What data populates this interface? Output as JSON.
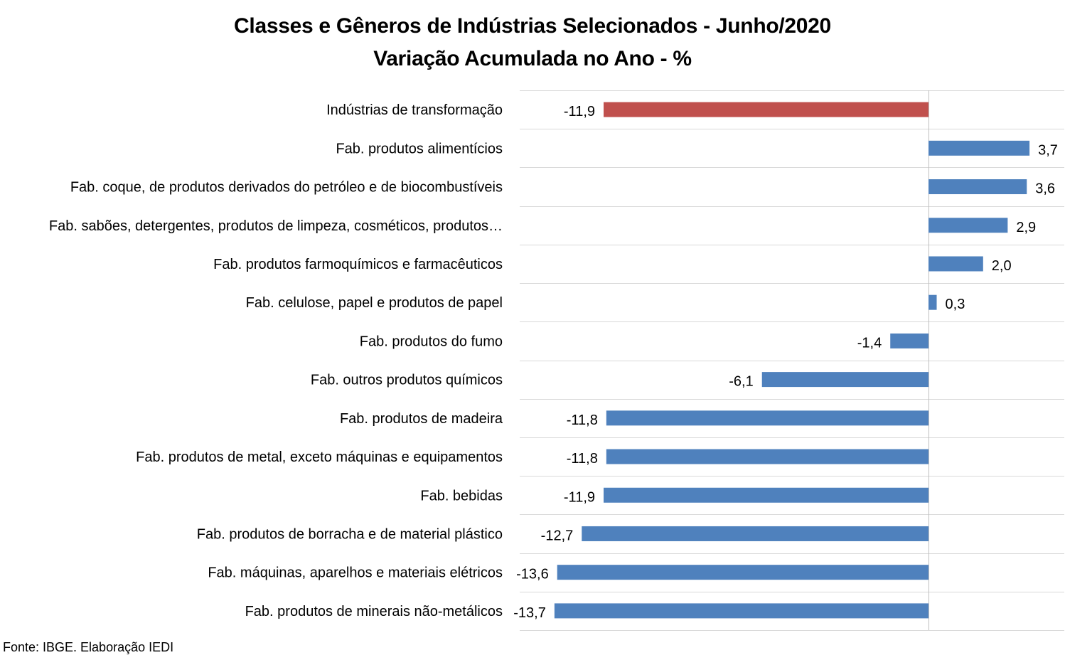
{
  "title_line1": "Classes e Gêneros de Indústrias Selecionados - Junho/2020",
  "title_line2": "Variação Acumulada no Ano - %",
  "source": "Fonte: IBGE. Elaboração IEDI",
  "colors": {
    "highlight": "#C0504D",
    "bar": "#4F81BD",
    "grid": "#D9D9D9",
    "axis": "#BFBFBF"
  },
  "chart_data": {
    "type": "bar",
    "orientation": "horizontal",
    "title": "Classes e Gêneros de Indústrias Selecionados - Junho/2020 Variação Acumulada no Ano - %",
    "xlim": [
      -15,
      5
    ],
    "grid": true,
    "categories": [
      "Indústrias de transformação",
      "Fab. produtos alimentícios",
      "Fab. coque, de produtos derivados do petróleo e de biocombustíveis",
      "Fab. sabões, detergentes, produtos de limpeza, cosméticos, produtos…",
      "Fab. produtos farmoquímicos e farmacêuticos",
      "Fab. celulose, papel e produtos de papel",
      "Fab. produtos do fumo",
      "Fab. outros produtos químicos",
      "Fab. produtos de madeira",
      "Fab. produtos de metal, exceto máquinas e equipamentos",
      "Fab. bebidas",
      "Fab. produtos de borracha e de material plástico",
      "Fab. máquinas, aparelhos e materiais elétricos",
      "Fab. produtos de minerais não-metálicos"
    ],
    "values": [
      -11.9,
      3.7,
      3.6,
      2.9,
      2.0,
      0.3,
      -1.4,
      -6.1,
      -11.8,
      -11.8,
      -11.9,
      -12.7,
      -13.6,
      -13.7
    ],
    "value_labels": [
      "-11,9",
      "3,7",
      "3,6",
      "2,9",
      "2,0",
      "0,3",
      "-1,4",
      "-6,1",
      "-11,8",
      "-11,8",
      "-11,9",
      "-12,7",
      "-13,6",
      "-13,7"
    ],
    "highlight_index": 0
  }
}
